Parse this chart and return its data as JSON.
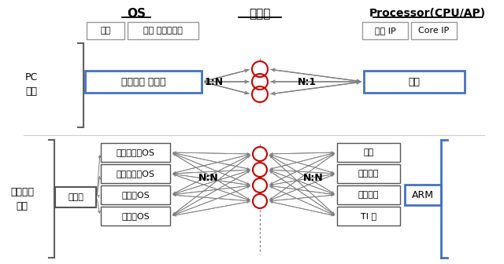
{
  "title_os": "OS",
  "title_manufacturer": "제조사",
  "title_processor": "Processor(CPU/AP)",
  "label_pc": "PC\n산업",
  "label_smartphone": "스마트폰\n산업",
  "pc_os_boxes": [
    "커널",
    "상위 프레임워크"
  ],
  "pc_os_main": "마이크로 소프트",
  "pc_ratio_left": "1:N",
  "pc_ratio_right": "N:1",
  "pc_processor": "인텔",
  "processor_sub_boxes": [
    "주변 IP",
    "Core IP"
  ],
  "sm_os_kernel": "리눅스",
  "sm_os_boxes": [
    "안드로이드OS",
    "파이어폭스OS",
    "타이젠OS",
    "우분투OS"
  ],
  "sm_ratio_left": "N:N",
  "sm_ratio_right": "N:N",
  "sm_processor_boxes": [
    "퀄컴",
    "엔비디아",
    "미디어텍",
    "TI 등"
  ],
  "sm_processor_main": "ARM",
  "circle_color": "#cc0000",
  "blue": "#4472c4",
  "gray_edge": "#999999",
  "dark_edge": "#555555",
  "arrow_color": "#808080"
}
